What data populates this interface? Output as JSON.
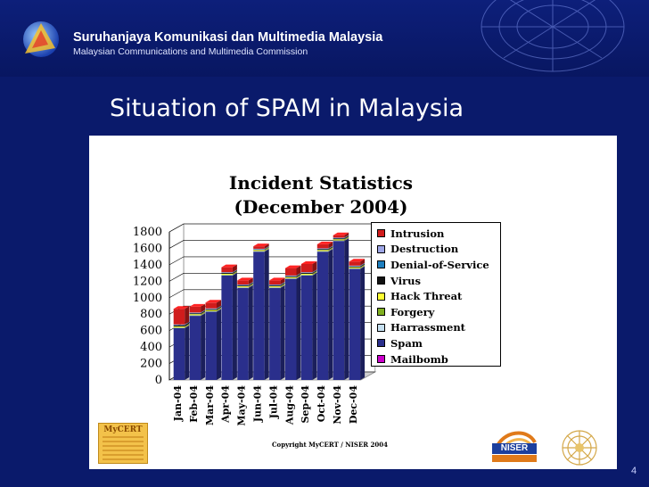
{
  "header": {
    "org_name": "Suruhanjaya Komunikasi dan Multimedia Malaysia",
    "org_name_en": "Malaysian Communications and Multimedia Commission"
  },
  "slide": {
    "title": "Situation of SPAM in Malaysia",
    "page_number": "4"
  },
  "footer": {
    "copyright": "Copyright MyCERT / NISER 2004",
    "mycert_label": "MyCERT",
    "niser_label": "NISER"
  },
  "chart_data": {
    "type": "bar",
    "stacked": true,
    "three_d": true,
    "title": "Incident Statistics",
    "subtitle": "(December 2004)",
    "xlabel": "",
    "ylabel": "",
    "ylim": [
      0,
      1800
    ],
    "yticks": [
      0,
      200,
      400,
      600,
      800,
      1000,
      1200,
      1400,
      1600,
      1800
    ],
    "grid": true,
    "legend_position": "right",
    "categories": [
      "Jan-04",
      "Feb-04",
      "Mar-04",
      "Apr-04",
      "May-04",
      "Jun-04",
      "Jul-04",
      "Aug-04",
      "Sep-04",
      "Oct-04",
      "Nov-04",
      "Dec-04"
    ],
    "series": [
      {
        "name": "Mailbomb",
        "color": "#cc00cc",
        "values": [
          0,
          0,
          0,
          0,
          0,
          0,
          0,
          0,
          0,
          0,
          0,
          0
        ]
      },
      {
        "name": "Spam",
        "color": "#2a2f8c",
        "values": [
          630,
          780,
          830,
          1270,
          1120,
          1560,
          1120,
          1230,
          1270,
          1560,
          1690,
          1350
        ]
      },
      {
        "name": "Harrassment",
        "color": "#c6e0f0",
        "values": [
          5,
          5,
          5,
          5,
          5,
          5,
          5,
          5,
          5,
          5,
          5,
          5
        ]
      },
      {
        "name": "Forgery",
        "color": "#80b020",
        "values": [
          5,
          5,
          5,
          5,
          5,
          5,
          5,
          5,
          5,
          5,
          5,
          5
        ]
      },
      {
        "name": "Hack Threat",
        "color": "#ffff33",
        "values": [
          10,
          10,
          10,
          10,
          10,
          10,
          10,
          10,
          10,
          10,
          10,
          10
        ]
      },
      {
        "name": "Virus",
        "color": "#111111",
        "values": [
          15,
          10,
          10,
          10,
          10,
          5,
          10,
          10,
          10,
          10,
          10,
          10
        ]
      },
      {
        "name": "Denial-of-Service",
        "color": "#1e7fbf",
        "values": [
          5,
          5,
          5,
          5,
          5,
          5,
          5,
          5,
          5,
          5,
          5,
          5
        ]
      },
      {
        "name": "Destruction",
        "color": "#9ea6e6",
        "values": [
          5,
          5,
          5,
          5,
          5,
          5,
          5,
          5,
          5,
          5,
          5,
          5
        ]
      },
      {
        "name": "Intrusion",
        "color": "#d01c1c",
        "values": [
          190,
          70,
          70,
          60,
          50,
          30,
          50,
          90,
          100,
          50,
          30,
          50
        ]
      }
    ],
    "legend_order": [
      "Intrusion",
      "Destruction",
      "Denial-of-Service",
      "Virus",
      "Hack Threat",
      "Forgery",
      "Harrassment",
      "Spam",
      "Mailbomb"
    ]
  }
}
